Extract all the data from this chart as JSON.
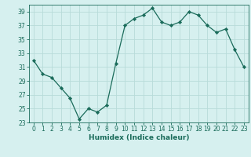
{
  "x": [
    0,
    1,
    2,
    3,
    4,
    5,
    6,
    7,
    8,
    9,
    10,
    11,
    12,
    13,
    14,
    15,
    16,
    17,
    18,
    19,
    20,
    21,
    22,
    23
  ],
  "y": [
    32,
    30,
    29.5,
    28,
    26.5,
    23.5,
    25,
    24.5,
    25.5,
    31.5,
    37,
    38,
    38.5,
    39.5,
    37.5,
    37,
    37.5,
    39,
    38.5,
    37,
    36,
    36.5,
    33.5,
    31
  ],
  "line_color": "#1a6b5a",
  "marker": "D",
  "marker_size": 2.2,
  "bg_color": "#d6f0ef",
  "grid_color": "#b8dbd9",
  "xlabel": "Humidex (Indice chaleur)",
  "ylim": [
    23,
    40
  ],
  "yticks": [
    23,
    25,
    27,
    29,
    31,
    33,
    35,
    37,
    39
  ],
  "xlim": [
    -0.5,
    23.5
  ],
  "xticks": [
    0,
    1,
    2,
    3,
    4,
    5,
    6,
    7,
    8,
    9,
    10,
    11,
    12,
    13,
    14,
    15,
    16,
    17,
    18,
    19,
    20,
    21,
    22,
    23
  ],
  "tick_color": "#1a6b5a",
  "label_fontsize": 6.5,
  "tick_fontsize": 5.5
}
